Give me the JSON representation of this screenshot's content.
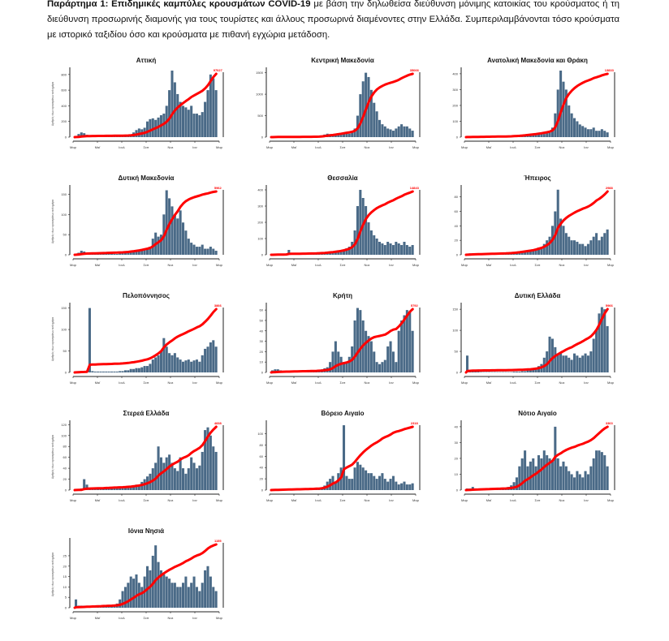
{
  "caption": {
    "bold": "Παράρτημα 1: Επιδημικές καμπύλες κρουσμάτων COVID-19",
    "text": " με βάση την δηλωθείσα διεύθυνση μόνιμης κατοικίας του κρούσματος ή τη διεύθυνση προσωρινής διαμονής για τους τουρίστες και άλλους προσωρινά διαμένοντες στην Ελλάδα. Συμπεριλαμβάνονται τόσο κρούσματα με ιστορικό ταξιδίου όσο και κρούσματα με πιθανή εγχώρια μετάδοση."
  },
  "colors": {
    "bars": "#4a6a87",
    "cumulative": "#ff0000",
    "axis": "#222222"
  },
  "chart_data": [
    {
      "type": "bar+line",
      "title": "Αττική",
      "total_label": "97027",
      "ylabel": "Αριθμός νέων κρουσμάτων ανά ημέρα",
      "x_ticks": [
        "Μαρ",
        "Μαϊ",
        "Ιουλ",
        "Σεπ",
        "Νοε",
        "Ιαν",
        "Μαρ"
      ],
      "y_ticks": [
        0,
        200,
        400,
        600,
        800
      ],
      "ylim": [
        0,
        850
      ],
      "values": [
        10,
        40,
        60,
        50,
        30,
        15,
        10,
        8,
        5,
        5,
        5,
        5,
        5,
        5,
        5,
        5,
        5,
        10,
        15,
        20,
        30,
        60,
        90,
        110,
        100,
        120,
        200,
        230,
        240,
        220,
        250,
        280,
        300,
        400,
        600,
        850,
        700,
        550,
        450,
        400,
        380,
        350,
        400,
        300,
        300,
        280,
        320,
        450,
        600,
        800,
        750,
        600
      ]
    },
    {
      "type": "bar+line",
      "title": "Κεντρική Μακεδονία",
      "total_label": "35066",
      "x_ticks": [
        "Μαρ",
        "Μαϊ",
        "Ιουλ",
        "Σεπ",
        "Νοε",
        "Ιαν",
        "Μαρ"
      ],
      "y_ticks": [
        0,
        500,
        1000,
        1500
      ],
      "ylim": [
        0,
        1550
      ],
      "values": [
        5,
        10,
        10,
        5,
        5,
        5,
        3,
        3,
        3,
        3,
        3,
        3,
        3,
        3,
        5,
        5,
        10,
        20,
        40,
        60,
        80,
        70,
        70,
        80,
        90,
        80,
        100,
        90,
        80,
        120,
        200,
        500,
        1000,
        1300,
        1500,
        1400,
        1100,
        800,
        600,
        400,
        300,
        250,
        200,
        180,
        150,
        200,
        250,
        300,
        250,
        250,
        200,
        150
      ]
    },
    {
      "type": "bar+line",
      "title": "Ανατολική Μακεδονία και Θράκη",
      "total_label": "13833",
      "x_ticks": [
        "Μαρ",
        "Μαϊ",
        "Ιουλ",
        "Σεπ",
        "Νοε",
        "Ιαν",
        "Μαρ"
      ],
      "y_ticks": [
        0,
        100,
        200,
        300,
        400
      ],
      "ylim": [
        0,
        420
      ],
      "values": [
        2,
        3,
        3,
        2,
        2,
        2,
        2,
        2,
        2,
        2,
        2,
        2,
        2,
        2,
        2,
        3,
        5,
        5,
        8,
        10,
        10,
        12,
        15,
        15,
        15,
        15,
        20,
        20,
        20,
        25,
        30,
        60,
        150,
        300,
        420,
        350,
        300,
        200,
        150,
        120,
        100,
        80,
        70,
        60,
        50,
        50,
        60,
        40,
        40,
        50,
        40,
        30
      ]
    },
    {
      "type": "bar+line",
      "title": "Δυτική Μακεδονία",
      "total_label": "5962",
      "ylabel": "Αριθμός νέων κρουσμάτων ανά ημέρα",
      "x_ticks": [
        "Μαρ",
        "Μαϊ",
        "Ιουλ",
        "Σεπ",
        "Νοε",
        "Ιαν",
        "Μαρ"
      ],
      "y_ticks": [
        0,
        50,
        100,
        150
      ],
      "ylim": [
        0,
        165
      ],
      "values": [
        2,
        5,
        10,
        8,
        4,
        3,
        2,
        2,
        2,
        2,
        2,
        2,
        3,
        3,
        2,
        2,
        3,
        3,
        5,
        5,
        10,
        8,
        10,
        10,
        12,
        15,
        15,
        20,
        40,
        55,
        45,
        50,
        100,
        160,
        140,
        120,
        100,
        90,
        110,
        80,
        60,
        40,
        30,
        25,
        20,
        20,
        25,
        15,
        15,
        20,
        15,
        10
      ]
    },
    {
      "type": "bar+line",
      "title": "Θεσσαλία",
      "total_label": "14843",
      "x_ticks": [
        "Μαρ",
        "Μαϊ",
        "Ιουλ",
        "Σεπ",
        "Νοε",
        "Ιαν",
        "Μαρ"
      ],
      "y_ticks": [
        0,
        100,
        200,
        300,
        400
      ],
      "ylim": [
        0,
        410
      ],
      "values": [
        2,
        3,
        5,
        3,
        2,
        2,
        30,
        5,
        2,
        2,
        2,
        2,
        2,
        2,
        3,
        3,
        5,
        5,
        10,
        10,
        12,
        15,
        15,
        20,
        20,
        25,
        30,
        40,
        50,
        80,
        150,
        300,
        400,
        350,
        300,
        200,
        150,
        120,
        100,
        80,
        70,
        60,
        80,
        70,
        60,
        80,
        70,
        60,
        80,
        60,
        50,
        60
      ]
    },
    {
      "type": "bar+line",
      "title": "Ήπειρος",
      "total_label": "2988",
      "x_ticks": [
        "Μαρ",
        "Μαϊ",
        "Ιουλ",
        "Σεπ",
        "Νοε",
        "Ιαν",
        "Μαρ"
      ],
      "y_ticks": [
        0,
        20,
        40,
        60,
        80
      ],
      "ylim": [
        0,
        92
      ],
      "values": [
        1,
        2,
        2,
        1,
        1,
        1,
        1,
        1,
        1,
        1,
        1,
        1,
        1,
        1,
        1,
        2,
        2,
        3,
        3,
        4,
        5,
        5,
        5,
        5,
        6,
        8,
        10,
        10,
        15,
        20,
        25,
        40,
        60,
        90,
        50,
        40,
        30,
        25,
        20,
        20,
        18,
        15,
        15,
        12,
        15,
        20,
        25,
        30,
        20,
        25,
        30,
        35
      ]
    },
    {
      "type": "bar+line",
      "title": "Πελοπόννησος",
      "total_label": "3866",
      "ylabel": "Αριθμός νέων κρουσμάτων ανά ημέρα",
      "x_ticks": [
        "Μαρ",
        "Μαϊ",
        "Ιουλ",
        "Σεπ",
        "Νοε",
        "Ιαν",
        "Μαρ"
      ],
      "y_ticks": [
        0,
        50,
        100,
        150
      ],
      "ylim": [
        0,
        155
      ],
      "values": [
        2,
        3,
        3,
        3,
        3,
        150,
        3,
        2,
        2,
        2,
        2,
        2,
        2,
        2,
        2,
        2,
        3,
        3,
        5,
        5,
        8,
        8,
        10,
        10,
        12,
        15,
        15,
        20,
        30,
        35,
        40,
        50,
        80,
        60,
        45,
        40,
        45,
        35,
        30,
        25,
        28,
        30,
        25,
        28,
        30,
        25,
        40,
        55,
        60,
        70,
        75,
        60
      ]
    },
    {
      "type": "bar+line",
      "title": "Κρήτη",
      "total_label": "5792",
      "x_ticks": [
        "Μαρ",
        "Μαϊ",
        "Ιουλ",
        "Σεπ",
        "Νοε",
        "Ιαν",
        "Μαρ"
      ],
      "y_ticks": [
        0,
        10,
        20,
        30,
        40,
        50,
        60
      ],
      "ylim": [
        0,
        64
      ],
      "values": [
        2,
        3,
        3,
        2,
        1,
        1,
        1,
        1,
        1,
        1,
        1,
        1,
        1,
        1,
        1,
        1,
        2,
        2,
        3,
        4,
        5,
        10,
        20,
        30,
        20,
        15,
        10,
        10,
        15,
        25,
        50,
        62,
        60,
        50,
        40,
        35,
        30,
        20,
        10,
        8,
        10,
        12,
        25,
        30,
        20,
        10,
        40,
        50,
        55,
        60,
        58,
        40
      ]
    },
    {
      "type": "bar+line",
      "title": "Δυτική Ελλάδα",
      "total_label": "5966",
      "x_ticks": [
        "Μαρ",
        "Μαϊ",
        "Ιουλ",
        "Σεπ",
        "Νοε",
        "Ιαν",
        "Μαρ"
      ],
      "y_ticks": [
        0,
        50,
        100,
        150
      ],
      "ylim": [
        0,
        158
      ],
      "values": [
        40,
        5,
        3,
        2,
        2,
        1,
        1,
        1,
        1,
        1,
        1,
        1,
        1,
        1,
        1,
        1,
        1,
        2,
        2,
        2,
        3,
        3,
        5,
        5,
        8,
        10,
        15,
        20,
        35,
        50,
        85,
        80,
        60,
        45,
        45,
        40,
        40,
        35,
        30,
        45,
        40,
        35,
        40,
        45,
        40,
        50,
        80,
        100,
        140,
        155,
        150,
        110
      ]
    },
    {
      "type": "bar+line",
      "title": "Στερεά Ελλάδα",
      "total_label": "4838",
      "ylabel": "Αριθμός νέων κρουσμάτων ανά ημέρα",
      "x_ticks": [
        "Μαρ",
        "Μαϊ",
        "Ιουλ",
        "Σεπ",
        "Νοε",
        "Ιαν",
        "Μαρ"
      ],
      "y_ticks": [
        0,
        20,
        40,
        60,
        80,
        100,
        120
      ],
      "ylim": [
        0,
        122
      ],
      "values": [
        2,
        2,
        3,
        20,
        10,
        3,
        3,
        2,
        2,
        2,
        2,
        3,
        3,
        5,
        3,
        3,
        3,
        3,
        5,
        5,
        8,
        8,
        10,
        10,
        15,
        20,
        25,
        30,
        40,
        50,
        80,
        60,
        50,
        60,
        65,
        50,
        40,
        35,
        60,
        40,
        30,
        40,
        60,
        50,
        40,
        45,
        70,
        110,
        115,
        100,
        80,
        70
      ]
    },
    {
      "type": "bar+line",
      "title": "Βόρειο Αιγαίο",
      "total_label": "2318",
      "x_ticks": [
        "Μαρ",
        "Μαϊ",
        "Ιουλ",
        "Σεπ",
        "Νοε",
        "Ιαν",
        "Μαρ"
      ],
      "y_ticks": [
        0,
        20,
        40,
        60,
        80,
        100
      ],
      "ylim": [
        0,
        118
      ],
      "values": [
        1,
        1,
        2,
        1,
        1,
        1,
        1,
        1,
        1,
        1,
        1,
        1,
        1,
        1,
        1,
        1,
        2,
        2,
        5,
        8,
        15,
        20,
        25,
        15,
        30,
        40,
        115,
        25,
        20,
        20,
        40,
        50,
        45,
        40,
        35,
        30,
        30,
        25,
        20,
        25,
        30,
        20,
        15,
        20,
        25,
        15,
        10,
        12,
        15,
        10,
        10,
        12
      ]
    },
    {
      "type": "bar+line",
      "title": "Νότιο Αιγαίο",
      "total_label": "3363",
      "x_ticks": [
        "Μαρ",
        "Μαϊ",
        "Ιουλ",
        "Σεπ",
        "Νοε",
        "Ιαν",
        "Μαρ"
      ],
      "y_ticks": [
        0,
        10,
        20,
        30,
        40
      ],
      "ylim": [
        0,
        42
      ],
      "values": [
        1,
        1,
        2,
        1,
        1,
        1,
        1,
        1,
        1,
        1,
        1,
        1,
        1,
        1,
        1,
        2,
        3,
        5,
        8,
        15,
        20,
        25,
        15,
        18,
        20,
        15,
        22,
        20,
        25,
        22,
        20,
        18,
        40,
        20,
        15,
        18,
        15,
        12,
        10,
        8,
        12,
        10,
        8,
        12,
        10,
        15,
        20,
        25,
        25,
        24,
        22,
        15
      ]
    },
    {
      "type": "bar+line",
      "title": "Ιόνια Νησιά",
      "total_label": "1155",
      "ylabel": "Αριθμός νέων κρουσμάτων ανά ημέρα",
      "x_ticks": [
        "Μαρ",
        "Μαϊ",
        "Ιουλ",
        "Σεπ",
        "Νοε",
        "Ιαν",
        "Μαρ"
      ],
      "y_ticks": [
        0,
        5,
        10,
        15,
        20,
        25
      ],
      "ylim": [
        0,
        32
      ],
      "values": [
        4,
        1,
        1,
        1,
        1,
        1,
        1,
        1,
        1,
        1,
        1,
        1,
        1,
        1,
        1,
        2,
        4,
        8,
        10,
        12,
        15,
        14,
        16,
        12,
        10,
        15,
        20,
        18,
        25,
        30,
        22,
        18,
        16,
        15,
        14,
        12,
        12,
        10,
        10,
        12,
        15,
        10,
        12,
        15,
        10,
        8,
        12,
        18,
        20,
        15,
        10,
        8
      ]
    }
  ]
}
